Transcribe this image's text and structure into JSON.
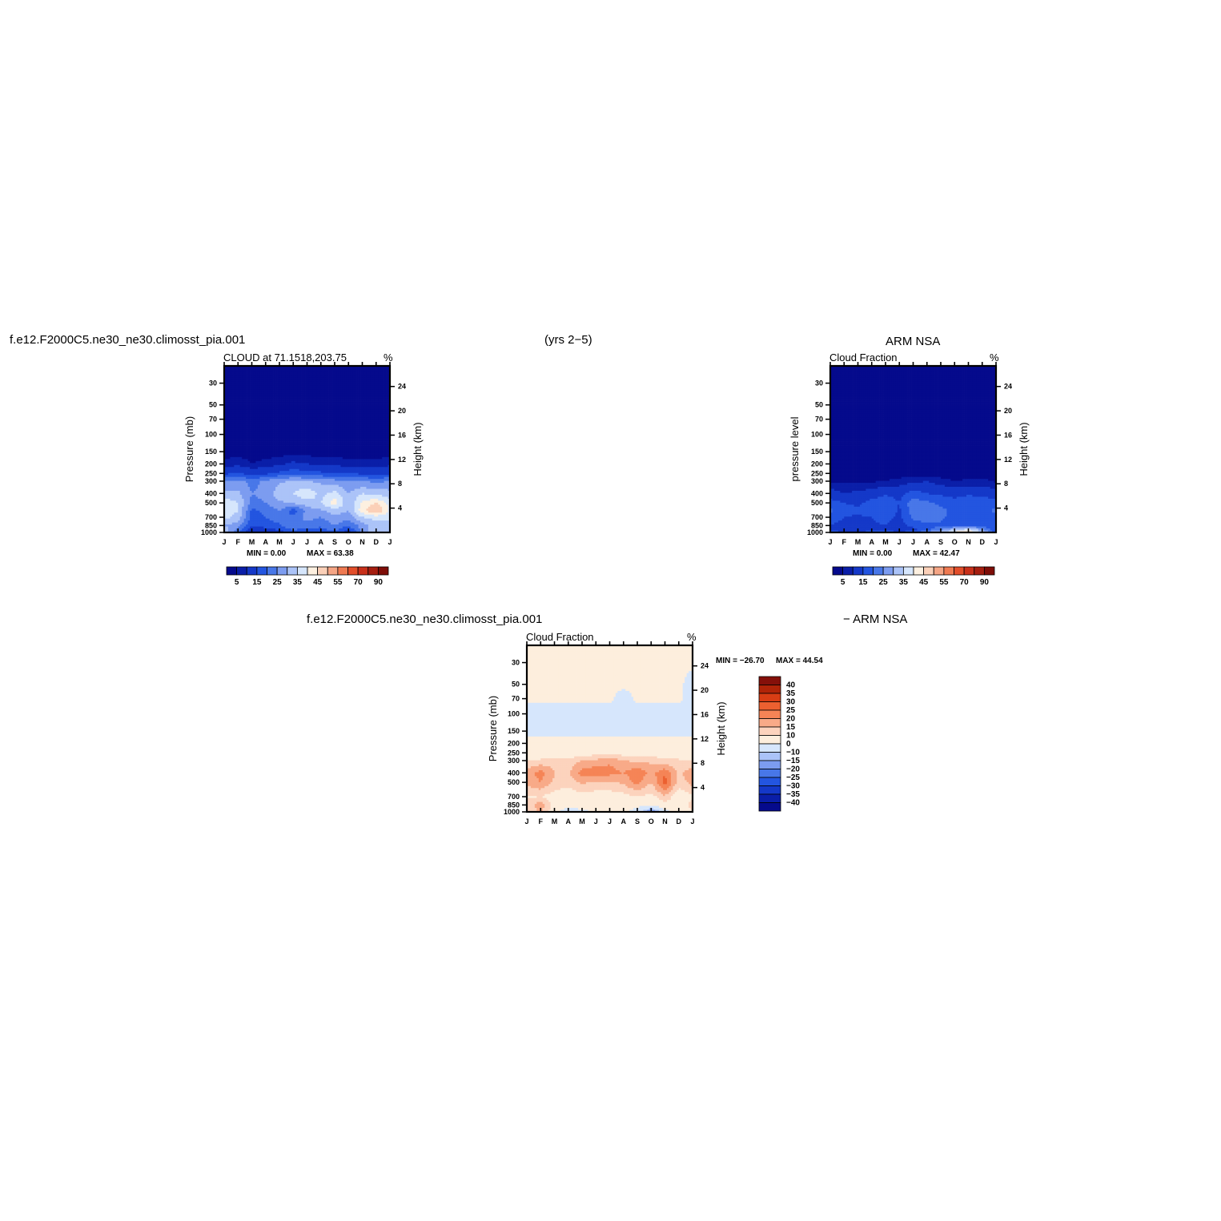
{
  "header": {
    "left_title": "f.e12.F2000C5.ne30_ne30.climosst_pia.001",
    "center_title": "(yrs 2−5)",
    "right_title": "ARM  NSA",
    "bottom_left_title": "f.e12.F2000C5.ne30_ne30.climosst_pia.001",
    "bottom_right_title": "− ARM  NSA"
  },
  "colors": {
    "abs_palette": [
      "#050a8c",
      "#0a1ea8",
      "#1438c8",
      "#2355e0",
      "#4877e8",
      "#7c9cf0",
      "#abc3f8",
      "#d6e6fc",
      "#fdf0e0",
      "#fbd0b8",
      "#f5a585",
      "#ef7a52",
      "#e24e2a",
      "#c8301a",
      "#a51e10",
      "#7e0d08"
    ],
    "diff_palette": [
      "#050a8c",
      "#0a1ea8",
      "#1438c8",
      "#2355e0",
      "#4877e8",
      "#7c9cf0",
      "#abc3f8",
      "#d6e6fc",
      "#fdeedd",
      "#fcd3bd",
      "#f8aa88",
      "#f58456",
      "#ec6030",
      "#d83d14",
      "#b02408",
      "#85100a"
    ]
  },
  "chart_data": [
    {
      "type": "heatmap",
      "id": "model",
      "title": "CLOUD at 71.1518,203.75",
      "units": "%",
      "xlabel": "",
      "ylabel": "Pressure (mb)",
      "y2label": "Height (km)",
      "x_ticks": [
        "J",
        "F",
        "M",
        "A",
        "M",
        "J",
        "J",
        "A",
        "S",
        "O",
        "N",
        "D",
        "J"
      ],
      "p_ticks": [
        30,
        50,
        70,
        100,
        150,
        200,
        250,
        300,
        400,
        500,
        700,
        850,
        1000
      ],
      "h_ticks": [
        4,
        8,
        12,
        16,
        20,
        24
      ],
      "min_label": "MIN =     0.00",
      "max_label": "MAX =     63.38",
      "levels": [
        2,
        5,
        10,
        15,
        20,
        25,
        30,
        35,
        40,
        45,
        50,
        55,
        60,
        70,
        80,
        90
      ],
      "legend_labels": [
        "5",
        "15",
        "25",
        "35",
        "45",
        "55",
        "70",
        "90"
      ],
      "rows": [
        {
          "p": 30,
          "v": [
            0,
            0,
            0,
            0,
            0,
            0,
            0,
            0,
            0,
            0,
            0,
            0,
            0
          ]
        },
        {
          "p": 70,
          "v": [
            0,
            0,
            0,
            0,
            0,
            0,
            0,
            0,
            0,
            0,
            0,
            0,
            0
          ]
        },
        {
          "p": 150,
          "v": [
            0.5,
            0.5,
            0.5,
            0.5,
            0.5,
            0.5,
            0.5,
            0.5,
            0.5,
            0.5,
            0.5,
            0.5,
            0.5
          ]
        },
        {
          "p": 200,
          "v": [
            3,
            4,
            2,
            3,
            4,
            6,
            5,
            4,
            4,
            3,
            3,
            3,
            4
          ]
        },
        {
          "p": 250,
          "v": [
            9,
            10,
            8,
            9,
            11,
            13,
            12,
            11,
            10,
            10,
            9,
            8,
            9
          ]
        },
        {
          "p": 300,
          "v": [
            20,
            22,
            18,
            21,
            24,
            26,
            25,
            24,
            22,
            21,
            20,
            19,
            20
          ]
        },
        {
          "p": 400,
          "v": [
            27,
            26,
            20,
            22,
            28,
            30,
            34,
            28,
            32,
            25,
            30,
            28,
            27
          ]
        },
        {
          "p": 500,
          "v": [
            33,
            30,
            18,
            20,
            24,
            26,
            28,
            30,
            38,
            26,
            36,
            40,
            33
          ]
        },
        {
          "p": 600,
          "v": [
            34,
            30,
            14,
            16,
            20,
            12,
            22,
            24,
            28,
            25,
            38,
            46,
            34
          ]
        },
        {
          "p": 700,
          "v": [
            32,
            28,
            13,
            15,
            18,
            16,
            22,
            20,
            24,
            22,
            30,
            32,
            32
          ]
        },
        {
          "p": 850,
          "v": [
            25,
            22,
            10,
            12,
            14,
            20,
            18,
            16,
            20,
            16,
            22,
            28,
            25
          ]
        },
        {
          "p": 1000,
          "v": [
            30,
            16,
            4,
            6,
            8,
            12,
            10,
            12,
            14,
            6,
            22,
            30,
            30
          ]
        }
      ]
    },
    {
      "type": "heatmap",
      "id": "obs",
      "title": "Cloud Fraction",
      "units": "%",
      "xlabel": "",
      "ylabel": "pressure level",
      "y2label": "Height (km)",
      "x_ticks": [
        "J",
        "F",
        "M",
        "A",
        "M",
        "J",
        "J",
        "A",
        "S",
        "O",
        "N",
        "D",
        "J"
      ],
      "p_ticks": [
        30,
        50,
        70,
        100,
        150,
        200,
        250,
        300,
        400,
        500,
        700,
        850,
        1000
      ],
      "h_ticks": [
        4,
        8,
        12,
        16,
        20,
        24
      ],
      "min_label": "MIN =     0.00",
      "max_label": "MAX =     42.47",
      "levels": [
        2,
        5,
        10,
        15,
        20,
        25,
        30,
        35,
        40,
        45,
        50,
        55,
        60,
        70,
        80,
        90
      ],
      "legend_labels": [
        "5",
        "15",
        "25",
        "35",
        "45",
        "55",
        "70",
        "90"
      ],
      "rows": [
        {
          "p": 30,
          "v": [
            0,
            0,
            0,
            0,
            0,
            0,
            0,
            0,
            0,
            0,
            0,
            0,
            0
          ]
        },
        {
          "p": 150,
          "v": [
            0,
            0,
            0,
            0,
            0,
            0,
            0,
            0,
            0,
            0,
            0,
            0,
            0
          ]
        },
        {
          "p": 250,
          "v": [
            0.5,
            0.5,
            0.5,
            0.5,
            0.5,
            0.5,
            0.5,
            0.5,
            0.5,
            0.5,
            0.5,
            0.5,
            0.5
          ]
        },
        {
          "p": 300,
          "v": [
            1.5,
            1.2,
            1.2,
            1.5,
            2,
            3,
            4,
            5,
            3,
            2,
            2.5,
            3,
            1.5
          ]
        },
        {
          "p": 400,
          "v": [
            7,
            5,
            6,
            7,
            9,
            8,
            12,
            10,
            9,
            8,
            9,
            8,
            7
          ]
        },
        {
          "p": 500,
          "v": [
            12,
            10,
            9,
            12,
            14,
            10,
            18,
            16,
            14,
            12,
            14,
            14,
            12
          ]
        },
        {
          "p": 600,
          "v": [
            16,
            12,
            11,
            14,
            14,
            9,
            18,
            20,
            16,
            14,
            12,
            14,
            16
          ]
        },
        {
          "p": 700,
          "v": [
            13,
            10,
            9,
            10,
            12,
            9,
            16,
            18,
            16,
            13,
            12,
            13,
            13
          ]
        },
        {
          "p": 850,
          "v": [
            10,
            8,
            8,
            9,
            10,
            7,
            12,
            14,
            14,
            14,
            14,
            12,
            10
          ]
        },
        {
          "p": 925,
          "v": [
            9,
            7,
            7,
            8,
            9,
            5,
            8,
            12,
            18,
            26,
            30,
            22,
            9
          ]
        },
        {
          "p": 1000,
          "v": [
            12,
            10,
            10,
            12,
            14,
            10,
            14,
            20,
            28,
            38,
            42,
            30,
            12
          ]
        }
      ]
    },
    {
      "type": "heatmap",
      "id": "diff",
      "title": "Cloud Fraction",
      "units": "%",
      "xlabel": "",
      "ylabel": "Pressure (mb)",
      "y2label": "Height (km)",
      "x_ticks": [
        "J",
        "F",
        "M",
        "A",
        "M",
        "J",
        "J",
        "A",
        "S",
        "O",
        "N",
        "D",
        "J"
      ],
      "p_ticks": [
        30,
        50,
        70,
        100,
        150,
        200,
        250,
        300,
        400,
        500,
        700,
        850,
        1000
      ],
      "h_ticks": [
        4,
        8,
        12,
        16,
        20,
        24
      ],
      "min_label": "MIN = −26.70",
      "max_label": "MAX =   44.54",
      "levels": [
        -40,
        -35,
        -30,
        -25,
        -20,
        -15,
        -10,
        0,
        10,
        15,
        20,
        25,
        30,
        35,
        40
      ],
      "legend_labels": [
        "40",
        "35",
        "30",
        "25",
        "20",
        "15",
        "10",
        "0",
        "−10",
        "−15",
        "−20",
        "−25",
        "−30",
        "−35",
        "−40"
      ],
      "rows": [
        {
          "p": 30,
          "v": [
            0.5,
            0.5,
            0.5,
            0.5,
            0.5,
            0.5,
            0.5,
            0.5,
            0.5,
            0.5,
            0.5,
            0.5,
            0.5
          ]
        },
        {
          "p": 50,
          "v": [
            0.5,
            0.5,
            0.5,
            0.5,
            0.5,
            0.5,
            0.5,
            0.5,
            0.5,
            0.5,
            0.5,
            0.5,
            -1
          ]
        },
        {
          "p": 70,
          "v": [
            0.5,
            0.5,
            0.5,
            0.5,
            0.5,
            0.5,
            0.5,
            -1,
            0.5,
            0.5,
            0.5,
            0.5,
            -1
          ]
        },
        {
          "p": 100,
          "v": [
            -1,
            -1,
            -1,
            -1,
            -1,
            -1,
            -1,
            -1,
            -1,
            -1,
            -1,
            -1,
            -1
          ]
        },
        {
          "p": 150,
          "v": [
            -1,
            -1,
            -1,
            -1,
            -1,
            -1,
            -1,
            -1,
            -1,
            -1,
            -1,
            -1,
            -1
          ]
        },
        {
          "p": 200,
          "v": [
            1,
            1,
            1,
            1,
            1,
            1,
            1,
            1,
            1,
            1,
            1,
            1,
            1
          ]
        },
        {
          "p": 250,
          "v": [
            4,
            5,
            6,
            5,
            6,
            8,
            9,
            7,
            6,
            6,
            5,
            5,
            4
          ]
        },
        {
          "p": 300,
          "v": [
            10,
            11,
            13,
            12,
            15,
            16,
            19,
            15,
            14,
            14,
            12,
            11,
            10
          ]
        },
        {
          "p": 400,
          "v": [
            18,
            22,
            15,
            14,
            22,
            24,
            22,
            20,
            24,
            18,
            24,
            14,
            18
          ]
        },
        {
          "p": 500,
          "v": [
            17,
            20,
            14,
            12,
            16,
            14,
            14,
            16,
            22,
            15,
            28,
            12,
            17
          ]
        },
        {
          "p": 700,
          "v": [
            9,
            10,
            7,
            6,
            8,
            7,
            7,
            8,
            10,
            8,
            14,
            6,
            9
          ]
        },
        {
          "p": 850,
          "v": [
            12,
            18,
            7,
            4,
            6,
            8,
            7,
            5,
            4,
            2,
            8,
            6,
            12
          ]
        },
        {
          "p": 1000,
          "v": [
            10,
            16,
            6,
            -8,
            -3,
            2,
            3,
            4,
            -6,
            -22,
            -4,
            5,
            10
          ]
        }
      ]
    }
  ]
}
